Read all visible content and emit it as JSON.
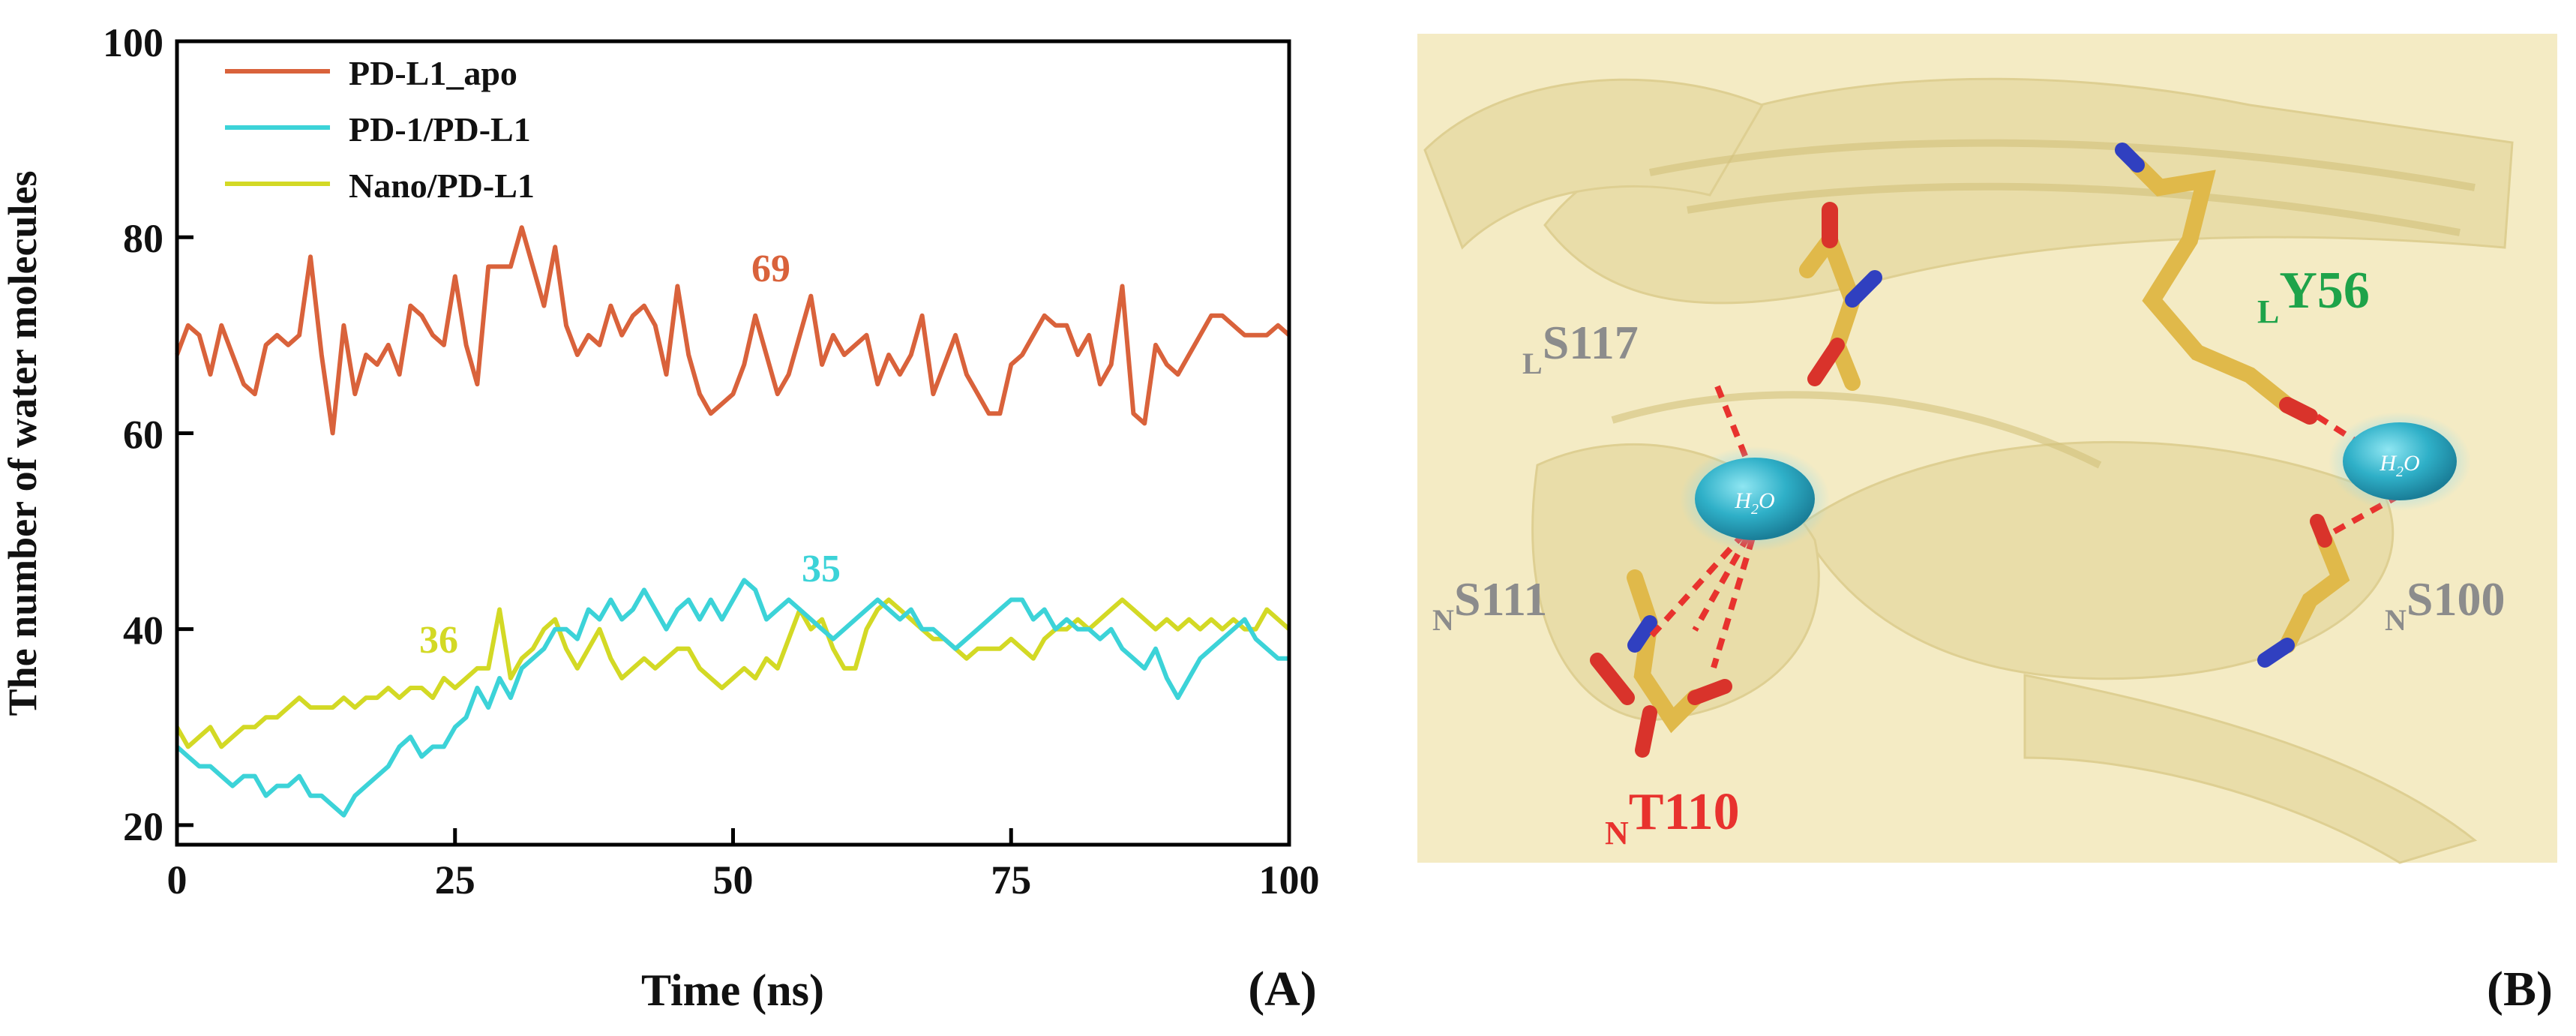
{
  "chart_data": {
    "type": "line",
    "title": "",
    "xlabel": "Time (ns)",
    "ylabel": "The number of water molecules",
    "xlim": [
      0,
      100
    ],
    "ylim": [
      18,
      100
    ],
    "xticks": [
      0,
      25,
      50,
      75,
      100
    ],
    "yticks": [
      20,
      40,
      60,
      80,
      100
    ],
    "grid": false,
    "legend_position": "top-left",
    "panel_label": "(A)",
    "series": [
      {
        "name": "PD-L1_apo",
        "color": "#D9623B",
        "annotation": "69",
        "x": [
          0,
          1,
          2,
          3,
          4,
          5,
          6,
          7,
          8,
          9,
          10,
          11,
          12,
          13,
          14,
          15,
          16,
          17,
          18,
          19,
          20,
          21,
          22,
          23,
          24,
          25,
          26,
          27,
          28,
          29,
          30,
          31,
          32,
          33,
          34,
          35,
          36,
          37,
          38,
          39,
          40,
          41,
          42,
          43,
          44,
          45,
          46,
          47,
          48,
          49,
          50,
          51,
          52,
          53,
          54,
          55,
          56,
          57,
          58,
          59,
          60,
          61,
          62,
          63,
          64,
          65,
          66,
          67,
          68,
          69,
          70,
          71,
          72,
          73,
          74,
          75,
          76,
          77,
          78,
          79,
          80,
          81,
          82,
          83,
          84,
          85,
          86,
          87,
          88,
          89,
          90,
          91,
          92,
          93,
          94,
          95,
          96,
          97,
          98,
          99,
          100
        ],
        "y": [
          68,
          71,
          70,
          66,
          71,
          68,
          65,
          64,
          69,
          70,
          69,
          70,
          78,
          68,
          60,
          71,
          64,
          68,
          67,
          69,
          66,
          73,
          72,
          70,
          69,
          76,
          69,
          65,
          77,
          77,
          77,
          81,
          77,
          73,
          79,
          71,
          68,
          70,
          69,
          73,
          70,
          72,
          73,
          71,
          66,
          75,
          68,
          64,
          62,
          63,
          64,
          67,
          72,
          68,
          64,
          66,
          70,
          74,
          67,
          70,
          68,
          69,
          70,
          65,
          68,
          66,
          68,
          72,
          64,
          67,
          70,
          66,
          64,
          62,
          62,
          67,
          68,
          70,
          72,
          71,
          71,
          68,
          70,
          65,
          67,
          75,
          62,
          61,
          69,
          67,
          66,
          68,
          70,
          72,
          72,
          71,
          70,
          70,
          70,
          71,
          70
        ]
      },
      {
        "name": "PD-1/PD-L1",
        "color": "#3CD3D8",
        "annotation": "35",
        "x": [
          0,
          1,
          2,
          3,
          4,
          5,
          6,
          7,
          8,
          9,
          10,
          11,
          12,
          13,
          14,
          15,
          16,
          17,
          18,
          19,
          20,
          21,
          22,
          23,
          24,
          25,
          26,
          27,
          28,
          29,
          30,
          31,
          32,
          33,
          34,
          35,
          36,
          37,
          38,
          39,
          40,
          41,
          42,
          43,
          44,
          45,
          46,
          47,
          48,
          49,
          50,
          51,
          52,
          53,
          54,
          55,
          56,
          57,
          58,
          59,
          60,
          61,
          62,
          63,
          64,
          65,
          66,
          67,
          68,
          69,
          70,
          71,
          72,
          73,
          74,
          75,
          76,
          77,
          78,
          79,
          80,
          81,
          82,
          83,
          84,
          85,
          86,
          87,
          88,
          89,
          90,
          91,
          92,
          93,
          94,
          95,
          96,
          97,
          98,
          99,
          100
        ],
        "y": [
          28,
          27,
          26,
          26,
          25,
          24,
          25,
          25,
          23,
          24,
          24,
          25,
          23,
          23,
          22,
          21,
          23,
          24,
          25,
          26,
          28,
          29,
          27,
          28,
          28,
          30,
          31,
          34,
          32,
          35,
          33,
          36,
          37,
          38,
          40,
          40,
          39,
          42,
          41,
          43,
          41,
          42,
          44,
          42,
          40,
          42,
          43,
          41,
          43,
          41,
          43,
          45,
          44,
          41,
          42,
          43,
          42,
          41,
          40,
          39,
          40,
          41,
          42,
          43,
          42,
          41,
          42,
          40,
          40,
          39,
          38,
          39,
          40,
          41,
          42,
          43,
          43,
          41,
          42,
          40,
          41,
          40,
          40,
          39,
          40,
          38,
          37,
          36,
          38,
          35,
          33,
          35,
          37,
          38,
          39,
          40,
          41,
          39,
          38,
          37,
          37
        ]
      },
      {
        "name": "Nano/PD-L1",
        "color": "#D3D925",
        "annotation": "36",
        "x": [
          0,
          1,
          2,
          3,
          4,
          5,
          6,
          7,
          8,
          9,
          10,
          11,
          12,
          13,
          14,
          15,
          16,
          17,
          18,
          19,
          20,
          21,
          22,
          23,
          24,
          25,
          26,
          27,
          28,
          29,
          30,
          31,
          32,
          33,
          34,
          35,
          36,
          37,
          38,
          39,
          40,
          41,
          42,
          43,
          44,
          45,
          46,
          47,
          48,
          49,
          50,
          51,
          52,
          53,
          54,
          55,
          56,
          57,
          58,
          59,
          60,
          61,
          62,
          63,
          64,
          65,
          66,
          67,
          68,
          69,
          70,
          71,
          72,
          73,
          74,
          75,
          76,
          77,
          78,
          79,
          80,
          81,
          82,
          83,
          84,
          85,
          86,
          87,
          88,
          89,
          90,
          91,
          92,
          93,
          94,
          95,
          96,
          97,
          98,
          99,
          100
        ],
        "y": [
          30,
          28,
          29,
          30,
          28,
          29,
          30,
          30,
          31,
          31,
          32,
          33,
          32,
          32,
          32,
          33,
          32,
          33,
          33,
          34,
          33,
          34,
          34,
          33,
          35,
          34,
          35,
          36,
          36,
          42,
          35,
          37,
          38,
          40,
          41,
          38,
          36,
          38,
          40,
          37,
          35,
          36,
          37,
          36,
          37,
          38,
          38,
          36,
          35,
          34,
          35,
          36,
          35,
          37,
          36,
          39,
          42,
          40,
          41,
          38,
          36,
          36,
          40,
          42,
          43,
          42,
          41,
          40,
          39,
          39,
          38,
          37,
          38,
          38,
          38,
          39,
          38,
          37,
          39,
          40,
          40,
          41,
          40,
          41,
          42,
          43,
          42,
          41,
          40,
          41,
          40,
          41,
          40,
          41,
          40,
          41,
          40,
          40,
          42,
          41,
          40
        ]
      }
    ]
  },
  "panel_b": {
    "panel_label": "(B)",
    "water_label": "H2O",
    "residues": [
      {
        "prefix": "L",
        "name": "S117",
        "color": "#8C8C8C"
      },
      {
        "prefix": "L",
        "name": "Y56",
        "color": "#1EA34A"
      },
      {
        "prefix": "N",
        "name": "S111",
        "color": "#8C8C8C"
      },
      {
        "prefix": "N",
        "name": "T110",
        "color": "#E8322E"
      },
      {
        "prefix": "N",
        "name": "S100",
        "color": "#8C8C8C"
      }
    ]
  }
}
